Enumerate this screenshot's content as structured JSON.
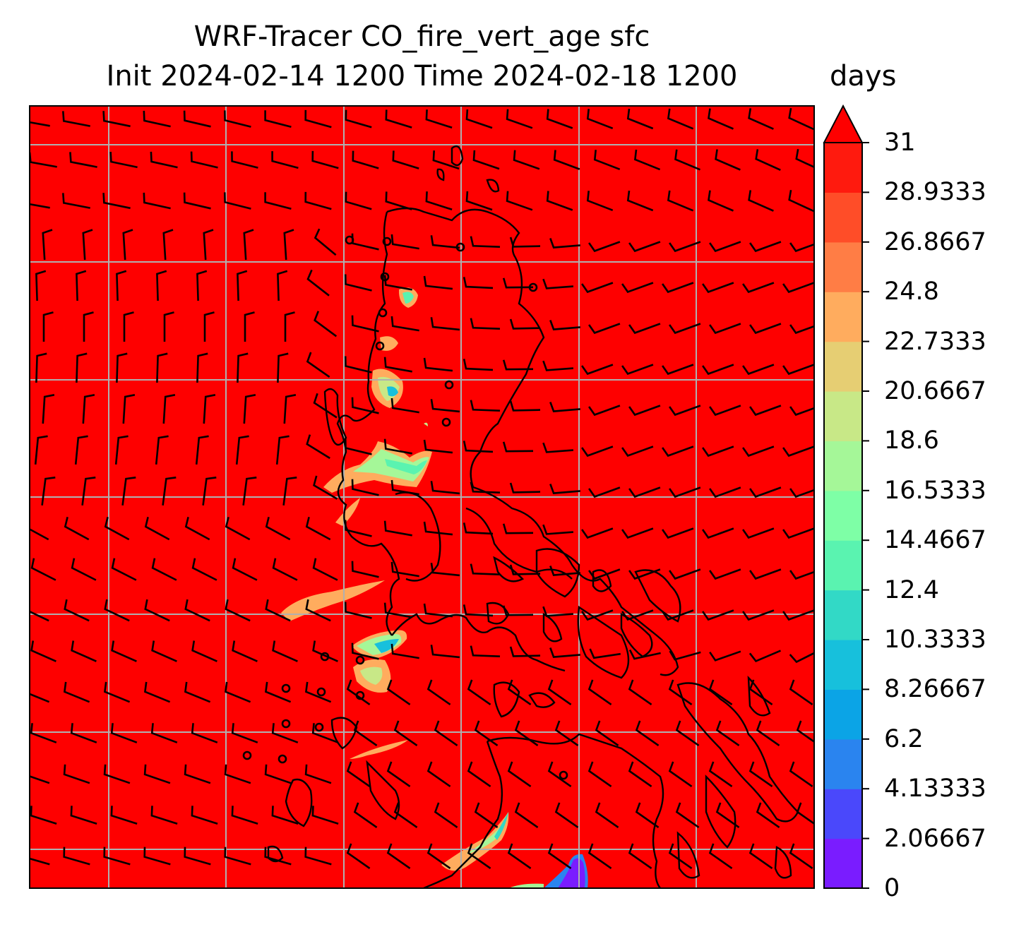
{
  "title": {
    "line1": "WRF-Tracer CO_fire_vert_age sfc",
    "line2": "Init 2024-02-14 1200 Time 2024-02-18 1200",
    "units": "days"
  },
  "colorbar": {
    "extend": "max",
    "levels": [
      "0",
      "2.06667",
      "4.13333",
      "6.2",
      "8.26667",
      "10.3333",
      "12.4",
      "14.4667",
      "16.5333",
      "18.6",
      "20.6667",
      "22.7333",
      "24.8",
      "26.8667",
      "28.9333",
      "31"
    ],
    "colors": [
      "#7a1cff",
      "#4a48fb",
      "#2a84ef",
      "#0ba4e6",
      "#17c0dc",
      "#32d9c6",
      "#5af3b0",
      "#7effa6",
      "#a5f798",
      "#c8e887",
      "#e6ce73",
      "#ffac5e",
      "#ff7d45",
      "#ff4d28",
      "#ff1a0e"
    ],
    "background_color": "#fe0000"
  },
  "map": {
    "gridlines": "on",
    "grid_color": "#b0b0b0",
    "coastline_color": "#000000",
    "barb_color": "#000000"
  }
}
